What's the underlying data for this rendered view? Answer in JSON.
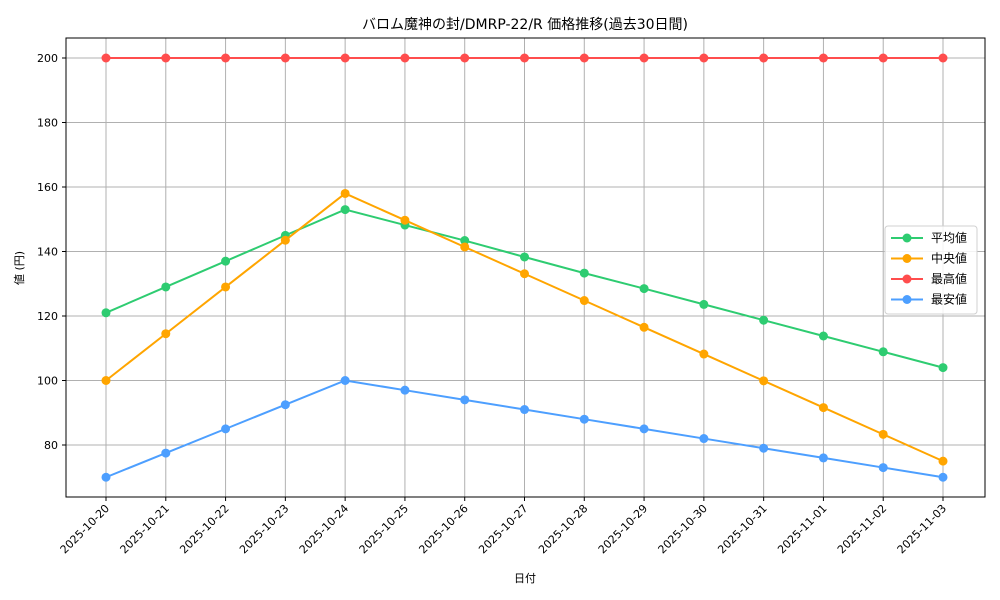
{
  "chart_data": {
    "type": "line",
    "title": "バロム魔神の封/DMRP-22/R 価格推移(過去30日間)",
    "xlabel": "日付",
    "ylabel": "値 (円)",
    "ylim": [
      63,
      206
    ],
    "yticks": [
      80,
      100,
      120,
      140,
      160,
      180,
      200
    ],
    "grid": true,
    "legend_position": "center right",
    "x": [
      "2025-10-20",
      "2025-10-21",
      "2025-10-22",
      "2025-10-23",
      "2025-10-24",
      "2025-10-25",
      "2025-10-26",
      "2025-10-27",
      "2025-10-28",
      "2025-10-29",
      "2025-10-30",
      "2025-10-31",
      "2025-11-01",
      "2025-11-02",
      "2025-11-03"
    ],
    "series": [
      {
        "name": "平均値",
        "color": "#2ecc71",
        "values": [
          121,
          129,
          137,
          145,
          153,
          148.2,
          143.4,
          138.3,
          133.3,
          128.5,
          123.6,
          118.7,
          113.8,
          108.9,
          104
        ]
      },
      {
        "name": "中央値",
        "color": "#ffa500",
        "values": [
          100,
          114.5,
          129,
          143.5,
          158,
          149.7,
          141.4,
          133.1,
          124.8,
          116.5,
          108.2,
          99.9,
          91.6,
          83.3,
          75
        ]
      },
      {
        "name": "最高値",
        "color": "#ff4d4d",
        "values": [
          200,
          200,
          200,
          200,
          200,
          200,
          200,
          200,
          200,
          200,
          200,
          200,
          200,
          200,
          200
        ]
      },
      {
        "name": "最安値",
        "color": "#4d9fff",
        "values": [
          70,
          77.5,
          85,
          92.5,
          100,
          97,
          94,
          91,
          88,
          85,
          82,
          79,
          76,
          73,
          70
        ]
      }
    ]
  }
}
